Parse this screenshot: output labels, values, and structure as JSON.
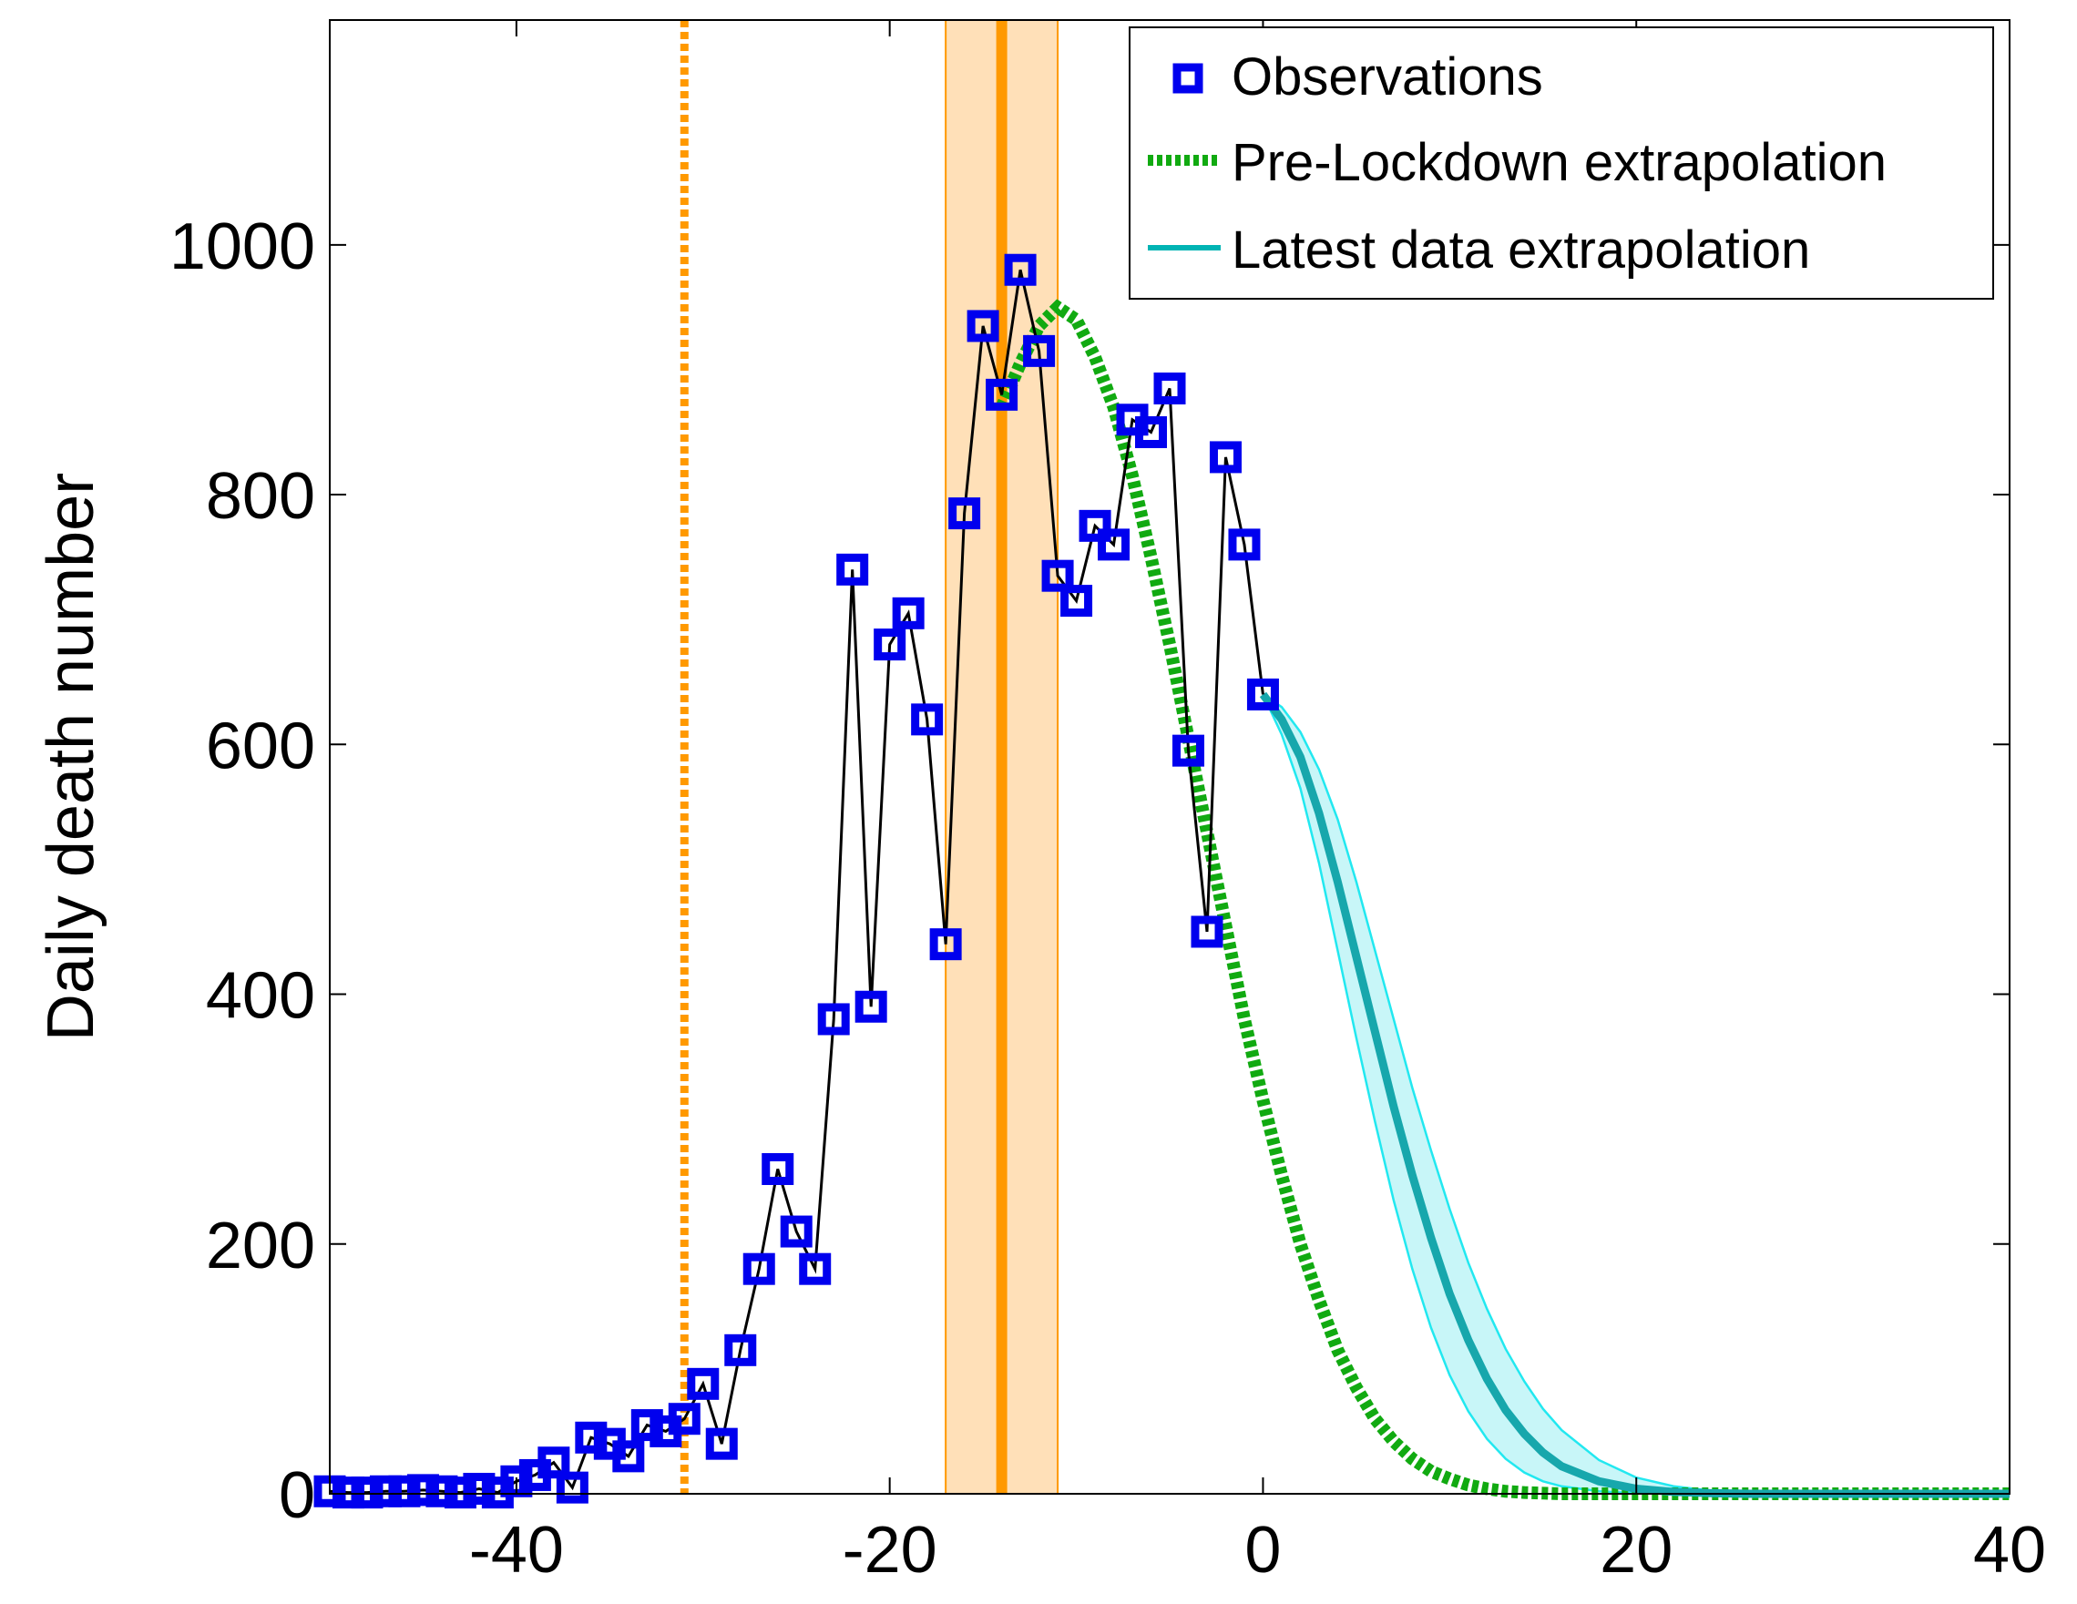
{
  "chart_data": {
    "type": "line",
    "title": "",
    "xlabel": "",
    "ylabel": "Daily death number",
    "xlim": [
      -50,
      40
    ],
    "ylim": [
      0,
      1180
    ],
    "xticks": [
      -40,
      -20,
      0,
      20,
      40
    ],
    "yticks": [
      0,
      200,
      400,
      600,
      800,
      1000
    ],
    "xtick_labels": [
      "-40",
      "-20",
      "0",
      "20",
      "40"
    ],
    "ytick_labels": [
      "0",
      "200",
      "400",
      "600",
      "800",
      "1000"
    ],
    "grid": false,
    "legend_position": "top-right",
    "legend": [
      {
        "label": "Observations",
        "marker": "square",
        "color": "#0000ee"
      },
      {
        "label": "Pre-Lockdown extrapolation",
        "style": "dotted",
        "color": "#11aa11"
      },
      {
        "label": "Latest data extrapolation",
        "style": "solid",
        "color": "#00c0c0"
      }
    ],
    "vertical_markers": [
      {
        "x": -31,
        "style": "dotted",
        "color": "#ff9900"
      },
      {
        "x": -14,
        "style": "solid",
        "color": "#ff9900",
        "band": [
          -17,
          -11
        ],
        "band_color": "#ffe0b8"
      }
    ],
    "series": [
      {
        "name": "Observations",
        "x": [
          -50,
          -49,
          -48,
          -47,
          -46,
          -45,
          -44,
          -43,
          -42,
          -41,
          -40,
          -39,
          -38,
          -37,
          -36,
          -35,
          -34,
          -33,
          -32,
          -31,
          -30,
          -29,
          -28,
          -27,
          -26,
          -25,
          -24,
          -23,
          -22,
          -21,
          -20,
          -19,
          -18,
          -17,
          -16,
          -15,
          -14,
          -13,
          -12,
          -11,
          -10,
          -9,
          -8,
          -7,
          -6,
          -5,
          -4,
          -3,
          -2,
          -1,
          0
        ],
        "values": [
          2,
          1,
          1,
          2,
          2,
          3,
          2,
          1,
          4,
          1,
          10,
          15,
          25,
          5,
          45,
          40,
          30,
          55,
          50,
          60,
          88,
          40,
          115,
          180,
          260,
          210,
          180,
          380,
          740,
          390,
          680,
          705,
          620,
          440,
          785,
          935,
          880,
          980,
          915,
          735,
          715,
          775,
          760,
          860,
          850,
          885,
          595,
          450,
          830,
          760,
          640
        ]
      },
      {
        "name": "Pre-Lockdown extrapolation",
        "x": [
          -14,
          -13,
          -12,
          -11,
          -10,
          -9,
          -8,
          -7,
          -6,
          -5,
          -4,
          -3,
          -2,
          -1,
          0,
          1,
          2,
          3,
          4,
          5,
          6,
          7,
          8,
          9,
          10,
          11,
          12,
          13,
          14,
          15,
          16,
          18,
          20,
          25,
          30,
          35,
          40
        ],
        "values": [
          870,
          905,
          935,
          950,
          940,
          910,
          870,
          815,
          750,
          680,
          605,
          530,
          455,
          380,
          315,
          255,
          200,
          155,
          115,
          85,
          60,
          42,
          28,
          18,
          12,
          7,
          4,
          2,
          1,
          0.5,
          0,
          0,
          0,
          0,
          0,
          0,
          0
        ]
      },
      {
        "name": "Latest data extrapolation",
        "x": [
          0,
          1,
          2,
          3,
          4,
          5,
          6,
          7,
          8,
          9,
          10,
          11,
          12,
          13,
          14,
          15,
          16,
          18,
          20,
          22,
          24,
          26,
          28,
          30,
          34,
          40
        ],
        "values": [
          640,
          620,
          590,
          545,
          490,
          430,
          370,
          310,
          255,
          205,
          160,
          123,
          92,
          67,
          48,
          33,
          22,
          10,
          4,
          1.5,
          0.5,
          0,
          0,
          0,
          0,
          0
        ],
        "upper": [
          640,
          630,
          610,
          580,
          540,
          490,
          435,
          380,
          325,
          275,
          228,
          185,
          148,
          116,
          90,
          68,
          51,
          27,
          13,
          6,
          2.5,
          1,
          0.3,
          0,
          0,
          0
        ],
        "lower": [
          640,
          608,
          565,
          505,
          435,
          365,
          298,
          235,
          180,
          133,
          95,
          66,
          44,
          28,
          17,
          10,
          6,
          2,
          0.5,
          0,
          0,
          0,
          0,
          0,
          0,
          0
        ]
      }
    ]
  }
}
